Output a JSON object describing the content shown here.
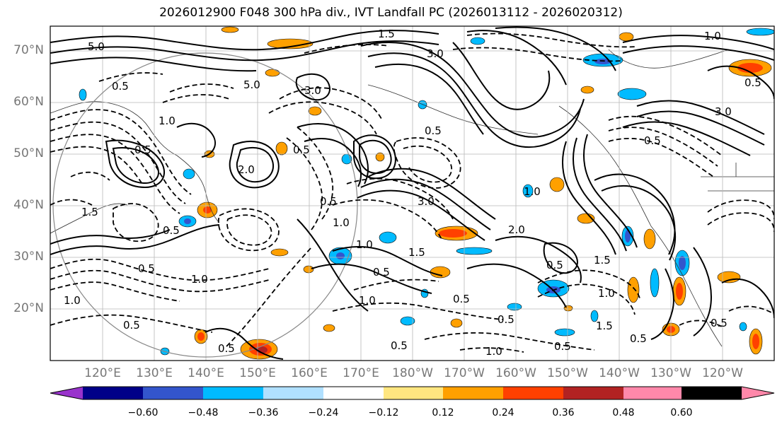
{
  "title": "2026012900 F048 300 hPa div., IVT Landfall PC (2026013112 - 2026020312)",
  "lat_labels": [
    "70°N",
    "60°N",
    "50°N",
    "40°N",
    "30°N",
    "20°N"
  ],
  "lon_labels": [
    "120°E",
    "130°E",
    "140°E",
    "150°E",
    "160°E",
    "170°E",
    "180°W",
    "170°W",
    "160°W",
    "150°W",
    "140°W",
    "130°W",
    "120°W"
  ],
  "colorbar": {
    "colors": [
      "#9933cc",
      "#000088",
      "#3355cc",
      "#00bbff",
      "#b0e0ff",
      "#ffffff",
      "#ffe680",
      "#ffa000",
      "#ff4000",
      "#b22222",
      "#ff88aa"
    ],
    "tick_labels": [
      "−0.60",
      "−0.48",
      "−0.36",
      "−0.24",
      "−0.12",
      "0.12",
      "0.24",
      "0.36",
      "0.48",
      "0.60"
    ]
  },
  "contour_labels": [
    {
      "text": "1.5"
    },
    {
      "text": "5.0"
    },
    {
      "text": "0.5"
    },
    {
      "text": "5.0"
    },
    {
      "text": "3.0"
    },
    {
      "text": "3.0"
    },
    {
      "text": "1.0"
    },
    {
      "text": "0.5"
    },
    {
      "text": "2.0"
    },
    {
      "text": "1.0"
    },
    {
      "text": "3.0"
    },
    {
      "text": "0.5"
    },
    {
      "text": "1.0"
    },
    {
      "text": "0.5"
    },
    {
      "text": "1.0"
    },
    {
      "text": "2.0"
    },
    {
      "text": "1.5"
    },
    {
      "text": "0.5"
    },
    {
      "text": "0.5"
    },
    {
      "text": "1.0"
    },
    {
      "text": "0.5"
    },
    {
      "text": "1.0"
    },
    {
      "text": "0.5"
    },
    {
      "text": "1.5"
    },
    {
      "text": "0.5"
    },
    {
      "text": "1.0"
    },
    {
      "text": "0.5"
    },
    {
      "text": "0.5"
    },
    {
      "text": "1.5"
    },
    {
      "text": "0.5"
    },
    {
      "text": "0.5"
    },
    {
      "text": "0.5"
    },
    {
      "text": "1.0"
    },
    {
      "text": "0.5"
    },
    {
      "text": "1.5"
    },
    {
      "text": "0.5"
    },
    {
      "text": "0.5"
    },
    {
      "text": "0.5"
    },
    {
      "text": "1.0"
    },
    {
      "text": "3.0"
    },
    {
      "text": "0.5"
    },
    {
      "text": "1.0"
    }
  ]
}
